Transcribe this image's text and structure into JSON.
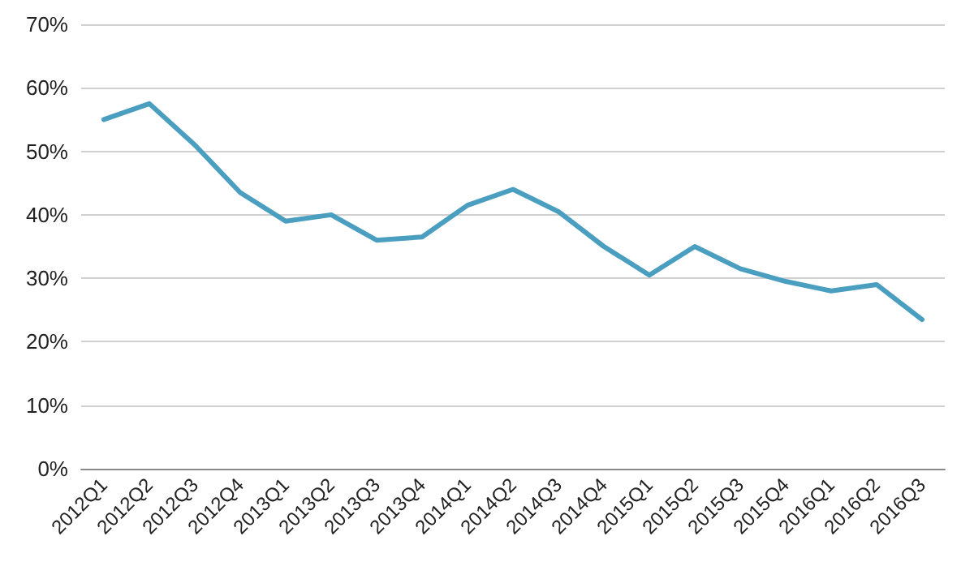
{
  "chart_data": {
    "type": "line",
    "categories": [
      "2012Q1",
      "2012Q2",
      "2012Q3",
      "2012Q4",
      "2013Q1",
      "2013Q2",
      "2013Q3",
      "2013Q4",
      "2014Q1",
      "2014Q2",
      "2014Q3",
      "2014Q4",
      "2015Q1",
      "2015Q2",
      "2015Q3",
      "2015Q4",
      "2016Q1",
      "2016Q2",
      "2016Q3"
    ],
    "series": [
      {
        "color": "#4a9ec0",
        "values": [
          55,
          57.5,
          51,
          43.5,
          39,
          40,
          36,
          36.5,
          41.5,
          44,
          40.5,
          35,
          30.5,
          35,
          31.5,
          29.5,
          28,
          29,
          23.5
        ]
      }
    ],
    "ylim": [
      0,
      70
    ],
    "yticks": [
      {
        "value": 0,
        "label": "0%"
      },
      {
        "value": 10,
        "label": "10%"
      },
      {
        "value": 20,
        "label": "20%"
      },
      {
        "value": 30,
        "label": "30%"
      },
      {
        "value": 40,
        "label": "40%"
      },
      {
        "value": 50,
        "label": "50%"
      },
      {
        "value": 60,
        "label": "60%"
      },
      {
        "value": 70,
        "label": "70%"
      }
    ],
    "grid": "y",
    "marker": "none",
    "line_style": "solid"
  }
}
